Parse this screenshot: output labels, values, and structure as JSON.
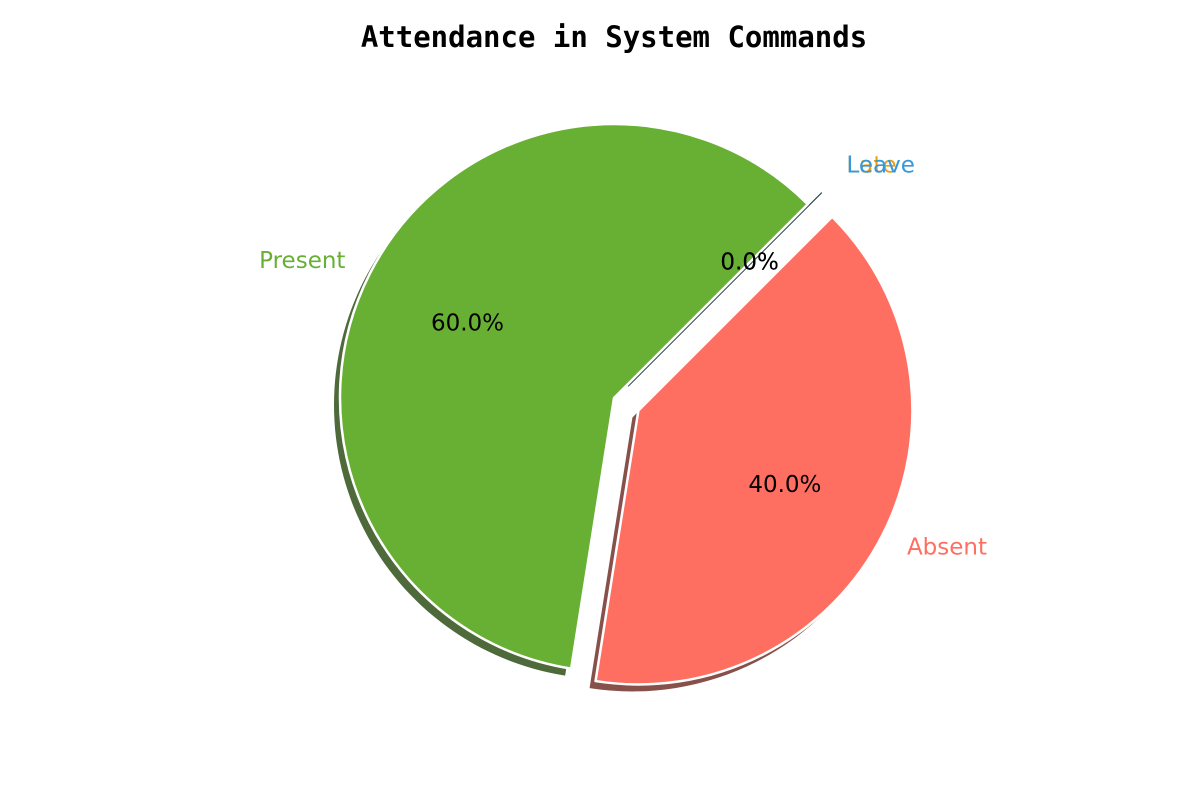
{
  "chart_data": {
    "type": "pie",
    "title": "Attendance in System Commands",
    "categories": [
      "Present",
      "Absent",
      "Late",
      "Leave"
    ],
    "values": [
      60.0,
      40.0,
      0.0,
      0.0
    ],
    "percent_labels": [
      "60.0%",
      "40.0%",
      "0.0%",
      "0.0%"
    ],
    "colors": [
      "#67b034",
      "#ff6f61",
      "#f39c12",
      "#3498db"
    ],
    "label_colors": [
      "#67b034",
      "#ff6f61",
      "#f39c12",
      "#3498db"
    ],
    "exploded": [
      false,
      true,
      true,
      true
    ],
    "shadow": true,
    "start_angle_deg": 45,
    "direction": "counterclockwise"
  }
}
